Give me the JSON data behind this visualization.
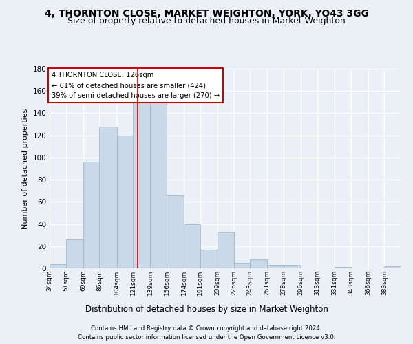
{
  "title1": "4, THORNTON CLOSE, MARKET WEIGHTON, YORK, YO43 3GG",
  "title2": "Size of property relative to detached houses in Market Weighton",
  "xlabel": "Distribution of detached houses by size in Market Weighton",
  "ylabel": "Number of detached properties",
  "categories": [
    "34sqm",
    "51sqm",
    "69sqm",
    "86sqm",
    "104sqm",
    "121sqm",
    "139sqm",
    "156sqm",
    "174sqm",
    "191sqm",
    "209sqm",
    "226sqm",
    "243sqm",
    "261sqm",
    "278sqm",
    "296sqm",
    "313sqm",
    "331sqm",
    "348sqm",
    "366sqm",
    "383sqm"
  ],
  "values": [
    4,
    26,
    96,
    128,
    120,
    152,
    152,
    66,
    40,
    17,
    33,
    5,
    8,
    3,
    3,
    0,
    0,
    1,
    0,
    0,
    2
  ],
  "bar_color": "#c9d9e8",
  "bar_edge_color": "#a0b8cc",
  "bin_edges": [
    34,
    51,
    69,
    86,
    104,
    121,
    139,
    156,
    174,
    191,
    209,
    226,
    243,
    261,
    278,
    296,
    313,
    331,
    348,
    366,
    383,
    400
  ],
  "red_line_value": 126,
  "annotation_text": "4 THORNTON CLOSE: 126sqm\n← 61% of detached houses are smaller (424)\n39% of semi-detached houses are larger (270) →",
  "annotation_box_color": "#ffffff",
  "annotation_box_edge_color": "#cc0000",
  "ylim": [
    0,
    180
  ],
  "yticks": [
    0,
    20,
    40,
    60,
    80,
    100,
    120,
    140,
    160,
    180
  ],
  "footer1": "Contains HM Land Registry data © Crown copyright and database right 2024.",
  "footer2": "Contains public sector information licensed under the Open Government Licence v3.0.",
  "background_color": "#eaf0f6",
  "plot_bg_color": "#eaf0f6",
  "grid_color": "#ffffff",
  "title_fontsize": 10,
  "subtitle_fontsize": 9
}
